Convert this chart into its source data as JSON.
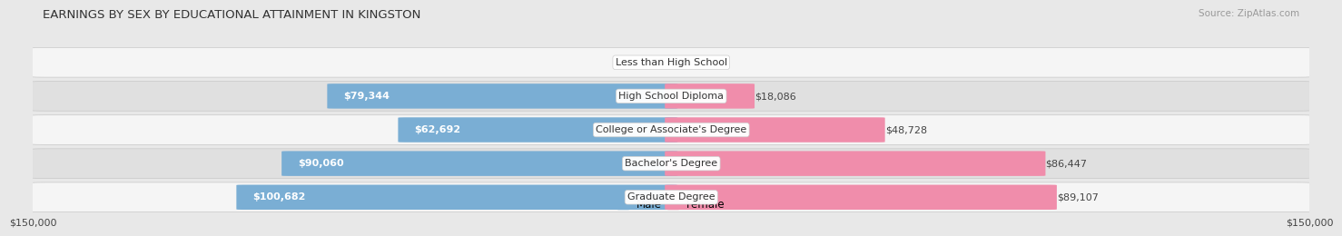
{
  "title": "EARNINGS BY SEX BY EDUCATIONAL ATTAINMENT IN KINGSTON",
  "source": "Source: ZipAtlas.com",
  "categories": [
    "Less than High School",
    "High School Diploma",
    "College or Associate's Degree",
    "Bachelor's Degree",
    "Graduate Degree"
  ],
  "male_values": [
    0,
    79344,
    62692,
    90060,
    100682
  ],
  "female_values": [
    0,
    18086,
    48728,
    86447,
    89107
  ],
  "male_color": "#7aaed4",
  "female_color": "#f08dab",
  "max_value": 150000,
  "bar_height": 0.72,
  "bg_color": "#e8e8e8",
  "row_bg_light": "#f5f5f5",
  "row_bg_dark": "#e0e0e0",
  "title_fontsize": 9.5,
  "source_fontsize": 7.5,
  "value_fontsize": 8,
  "category_fontsize": 8,
  "axis_label": "$150,000",
  "legend_male": "Male",
  "legend_female": "Female"
}
